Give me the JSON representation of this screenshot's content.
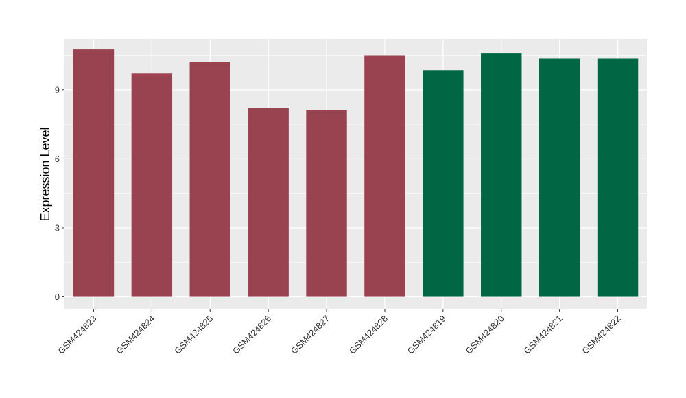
{
  "chart_data": {
    "type": "bar",
    "title": "",
    "xlabel": "",
    "ylabel": "Expression Level",
    "ylim": [
      -0.55,
      11.2
    ],
    "yticks": [
      0,
      3,
      6,
      9
    ],
    "grid": true,
    "legend": "none",
    "categories": [
      "GSM424823",
      "GSM424824",
      "GSM424825",
      "GSM424826",
      "GSM424827",
      "GSM424828",
      "GSM424819",
      "GSM424820",
      "GSM424821",
      "GSM424822"
    ],
    "values": [
      10.75,
      9.7,
      10.2,
      8.2,
      8.1,
      10.5,
      9.85,
      10.6,
      10.35,
      10.35
    ],
    "bar_colors": [
      "#994350",
      "#994350",
      "#994350",
      "#994350",
      "#994350",
      "#994350",
      "#006643",
      "#006643",
      "#006643",
      "#006643"
    ]
  },
  "colors": {
    "panel_background": "#ebebeb",
    "gridline": "#ffffff"
  }
}
